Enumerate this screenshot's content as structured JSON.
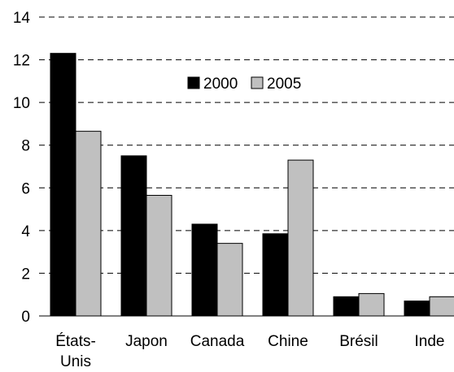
{
  "chart_data": {
    "type": "bar",
    "categories": [
      [
        "États-",
        "Unis"
      ],
      [
        "Japon"
      ],
      [
        "Canada"
      ],
      [
        "Chine"
      ],
      [
        "Brésil"
      ],
      [
        "Inde"
      ]
    ],
    "series": [
      {
        "name": "2000",
        "color": "#000000",
        "values": [
          12.3,
          7.5,
          4.3,
          3.85,
          0.9,
          0.7
        ]
      },
      {
        "name": "2005",
        "color": "#c0c0c0",
        "values": [
          8.65,
          5.65,
          3.4,
          7.3,
          1.05,
          0.9
        ]
      }
    ],
    "ylim": [
      0,
      14
    ],
    "yticks": [
      0,
      2,
      4,
      6,
      8,
      10,
      12,
      14
    ],
    "grid": true,
    "legend_position": "top-center"
  }
}
